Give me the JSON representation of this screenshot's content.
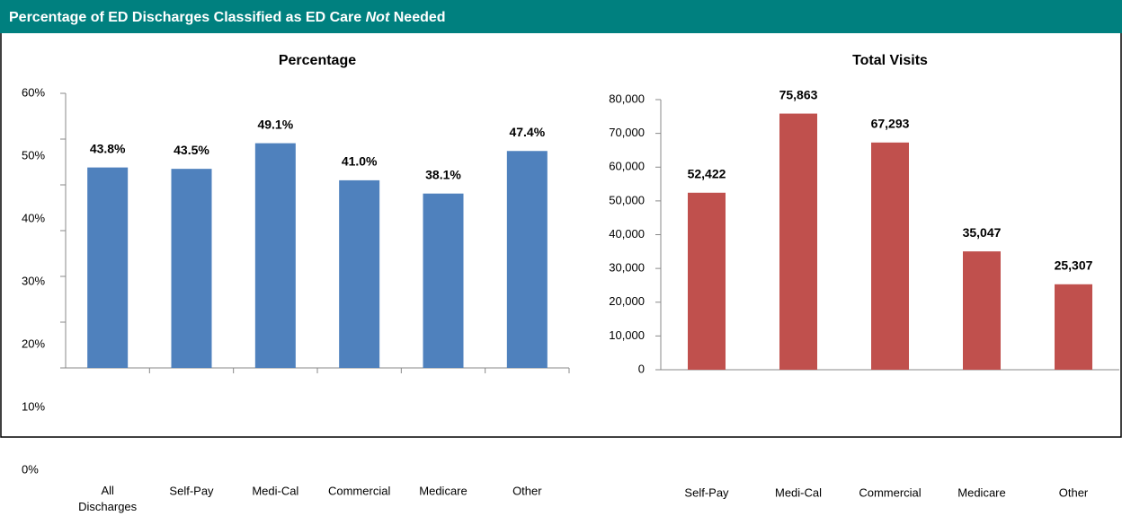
{
  "header": {
    "title_before": "Percentage of ED Discharges Classified as ED Care",
    "title_emphasis": "Not",
    "title_after": "Needed"
  },
  "chart_data": [
    {
      "type": "bar",
      "title": "Percentage",
      "categories": [
        "All Discharges",
        "Self-Pay",
        "Medi-Cal",
        "Commercial",
        "Medicare",
        "Other"
      ],
      "values": [
        43.8,
        43.5,
        49.1,
        41.0,
        38.1,
        47.4
      ],
      "value_labels": [
        "43.8%",
        "43.5%",
        "49.1%",
        "41.0%",
        "38.1%",
        "47.4%"
      ],
      "color": "#4f81bd",
      "ylim": [
        0,
        60
      ],
      "yticks": [
        {
          "value": 0,
          "label": "0%"
        },
        {
          "value": 10,
          "label": "10%"
        },
        {
          "value": 20,
          "label": "20%"
        },
        {
          "value": 30,
          "label": "30%"
        },
        {
          "value": 40,
          "label": "40%"
        },
        {
          "value": 50,
          "label": "50%"
        },
        {
          "value": 60,
          "label": "60%"
        }
      ],
      "grid": false
    },
    {
      "type": "bar",
      "title": "Total Visits",
      "categories": [
        "Self-Pay",
        "Medi-Cal",
        "Commercial",
        "Medicare",
        "Other"
      ],
      "values": [
        52422,
        75863,
        67293,
        35047,
        25307
      ],
      "value_labels": [
        "52,422",
        "75,863",
        "67,293",
        "35,047",
        "25,307"
      ],
      "color": "#c0504d",
      "ylim": [
        0,
        80000
      ],
      "yticks": [
        0,
        {
          "value": 10000,
          "label": "10,000"
        },
        {
          "value": 20000,
          "label": "20,000"
        },
        {
          "value": 30000,
          "label": "30,000"
        },
        {
          "value": 40000,
          "label": "40,000"
        },
        {
          "value": 50000,
          "label": "50,000"
        },
        {
          "value": 60000,
          "label": "60,000"
        },
        {
          "value": 70000,
          "label": "70,000"
        },
        {
          "value": 80000,
          "label": "80,000"
        }
      ],
      "grid": false
    }
  ]
}
